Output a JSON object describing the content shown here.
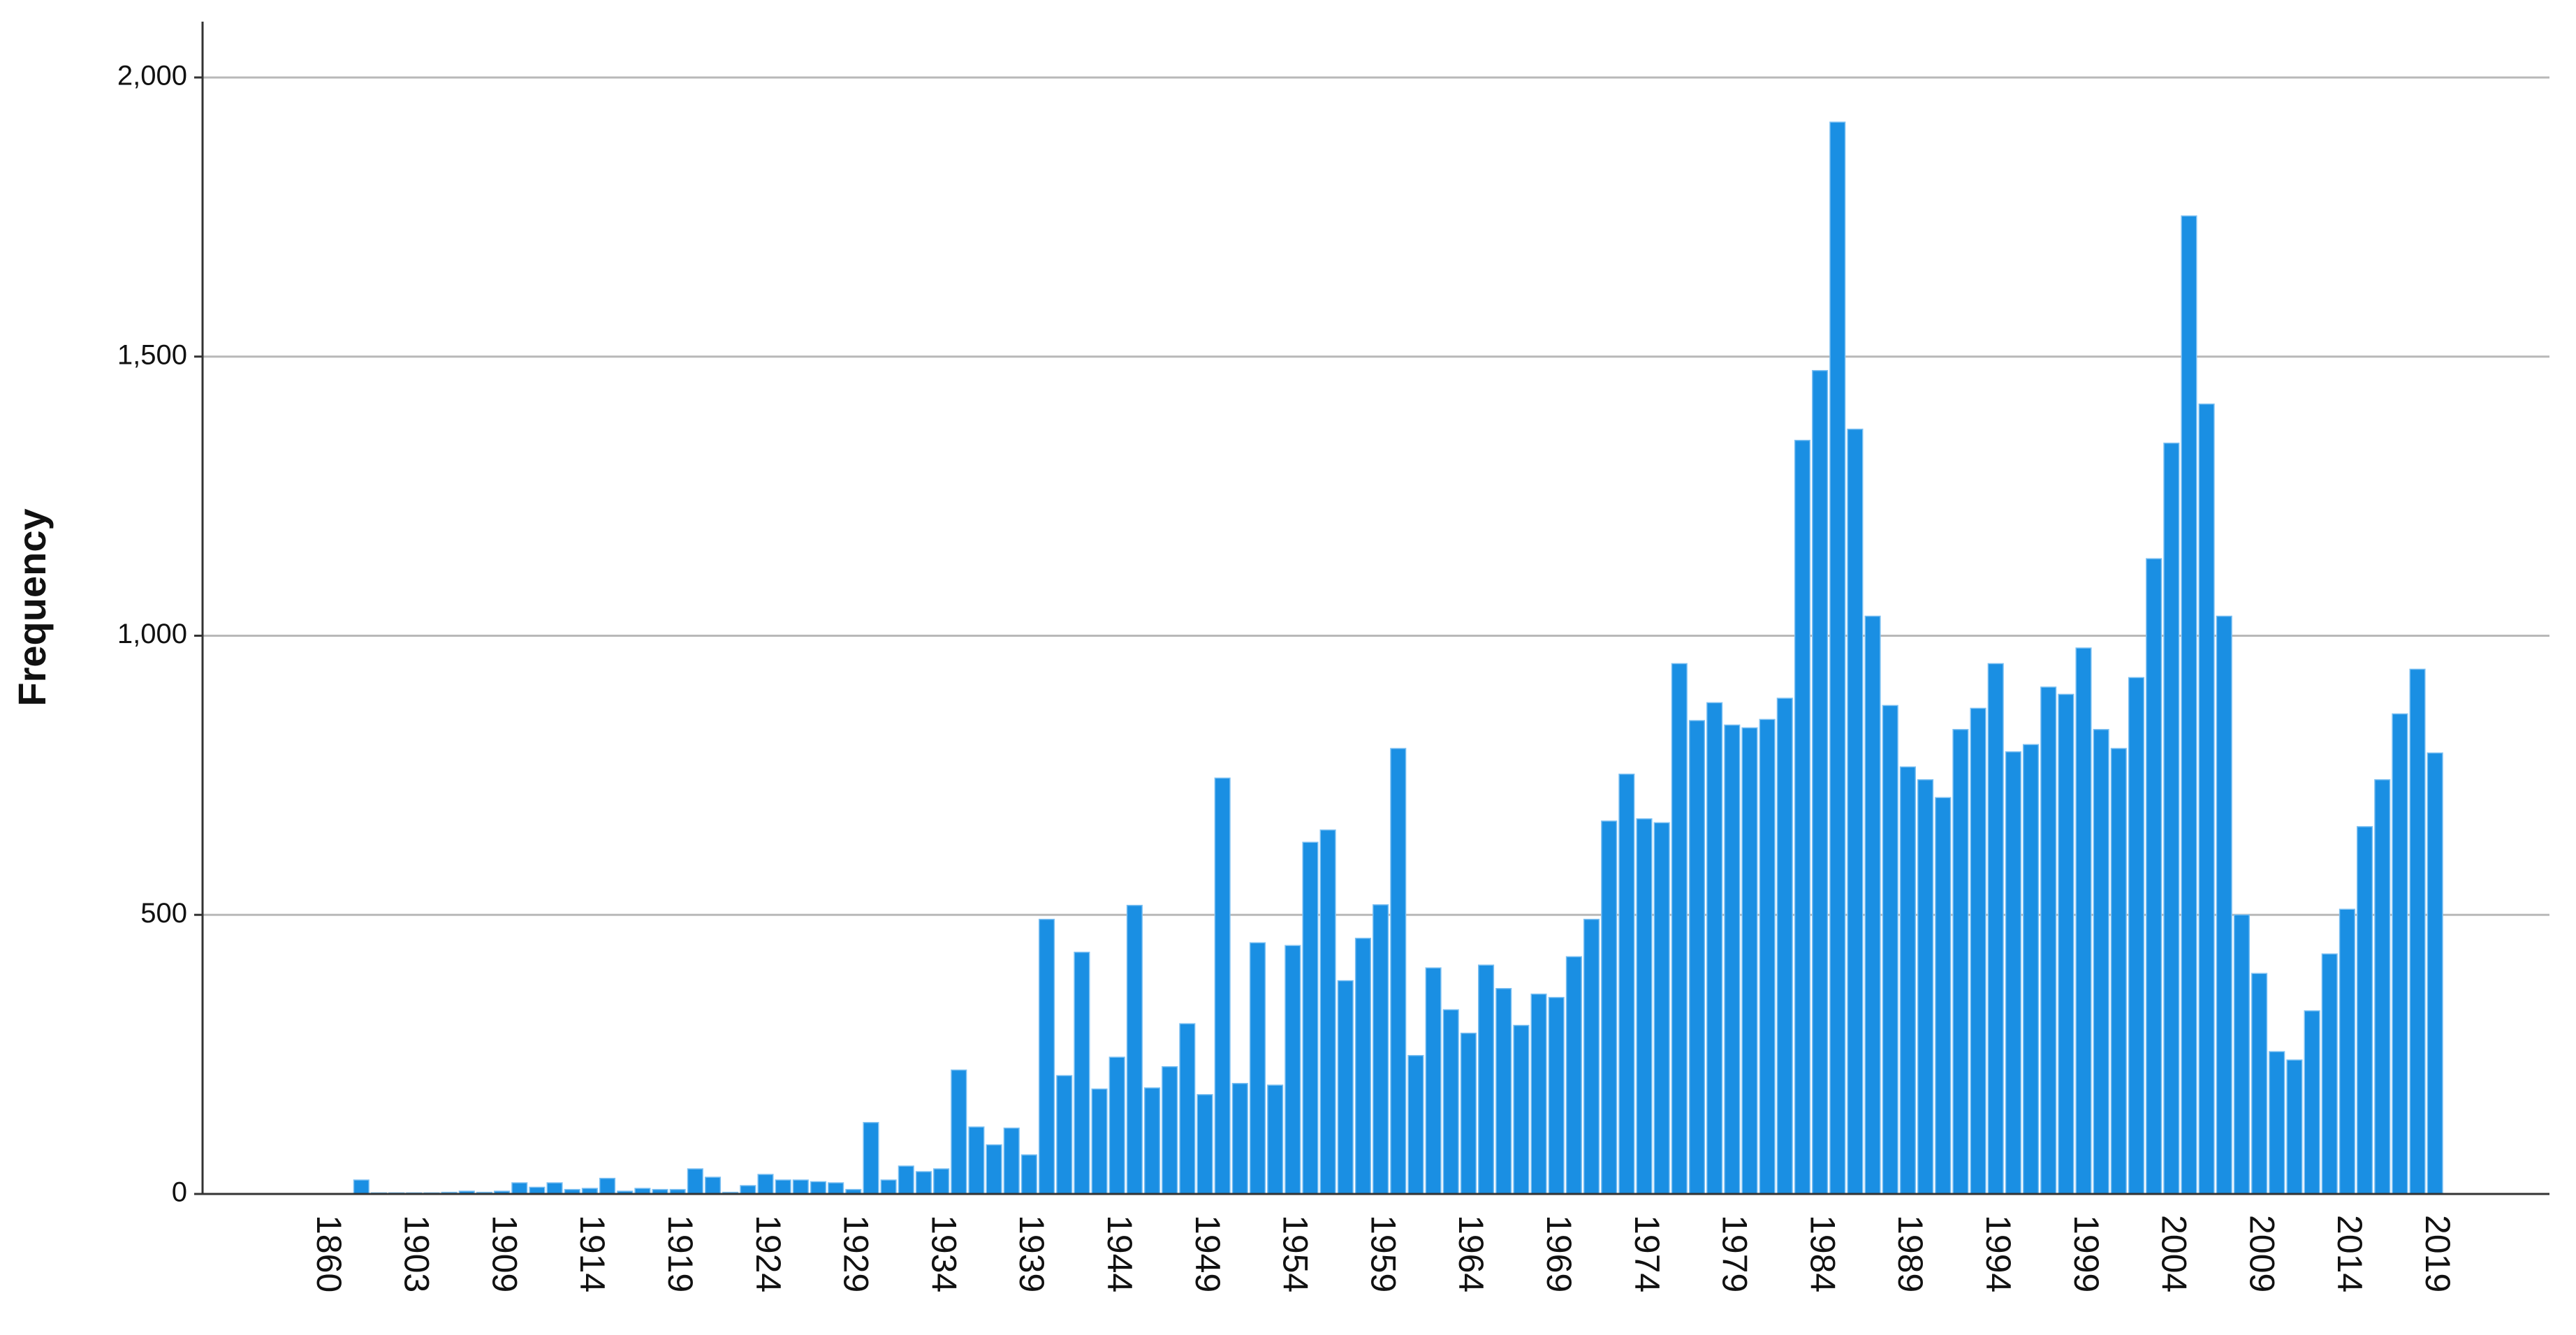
{
  "chart_data": {
    "type": "bar",
    "y_label": "Frequency",
    "categories": [
      "1860",
      null,
      null,
      null,
      null,
      "1903",
      null,
      null,
      null,
      null,
      "1909",
      null,
      null,
      null,
      null,
      "1914",
      null,
      null,
      null,
      null,
      "1919",
      null,
      null,
      null,
      null,
      "1924",
      null,
      null,
      null,
      null,
      "1929",
      null,
      null,
      null,
      null,
      "1934",
      null,
      null,
      null,
      null,
      "1939",
      null,
      null,
      null,
      null,
      "1944",
      null,
      null,
      null,
      null,
      "1949",
      null,
      null,
      null,
      null,
      "1954",
      null,
      null,
      null,
      null,
      "1959",
      null,
      null,
      null,
      null,
      "1964",
      null,
      null,
      null,
      null,
      "1969",
      null,
      null,
      null,
      null,
      "1974",
      null,
      null,
      null,
      null,
      "1979",
      null,
      null,
      null,
      null,
      "1984",
      null,
      null,
      null,
      null,
      "1989",
      null,
      null,
      null,
      null,
      "1994",
      null,
      null,
      null,
      null,
      "1999",
      null,
      null,
      null,
      null,
      "2004",
      null,
      null,
      null,
      null,
      "2009",
      null,
      null,
      null,
      null,
      "2014",
      null,
      null,
      null,
      null,
      "2019"
    ],
    "values": [
      0,
      0,
      25,
      2,
      2,
      2,
      2,
      3,
      5,
      3,
      5,
      20,
      12,
      20,
      8,
      10,
      28,
      5,
      10,
      8,
      8,
      45,
      30,
      3,
      15,
      35,
      25,
      25,
      22,
      20,
      8,
      128,
      25,
      50,
      40,
      45,
      222,
      120,
      88,
      118,
      70,
      492,
      212,
      433,
      188,
      245,
      517,
      190,
      228,
      305,
      178,
      745,
      198,
      450,
      195,
      445,
      630,
      652,
      382,
      458,
      518,
      798,
      248,
      405,
      330,
      288,
      410,
      368,
      302,
      358,
      352,
      425,
      492,
      668,
      752,
      672,
      665,
      950,
      848,
      880,
      840,
      835,
      850,
      888,
      1350,
      1475,
      1920,
      1370,
      1035,
      875,
      765,
      742,
      710,
      832,
      870,
      950,
      792,
      805,
      908,
      895,
      978,
      832,
      798,
      925,
      1138,
      1345,
      1752,
      1415,
      1035,
      500,
      395,
      255,
      240,
      328,
      430,
      510,
      658,
      742,
      860,
      940,
      790
    ],
    "color": "#1a8fe3",
    "ylim": [
      0,
      2100
    ],
    "yticks": [
      0,
      500,
      {
        "value": 1000,
        "label": "1,000"
      },
      {
        "value": 1500,
        "label": "1,500"
      },
      {
        "value": 2000,
        "label": "2,000"
      }
    ],
    "grid": true
  }
}
